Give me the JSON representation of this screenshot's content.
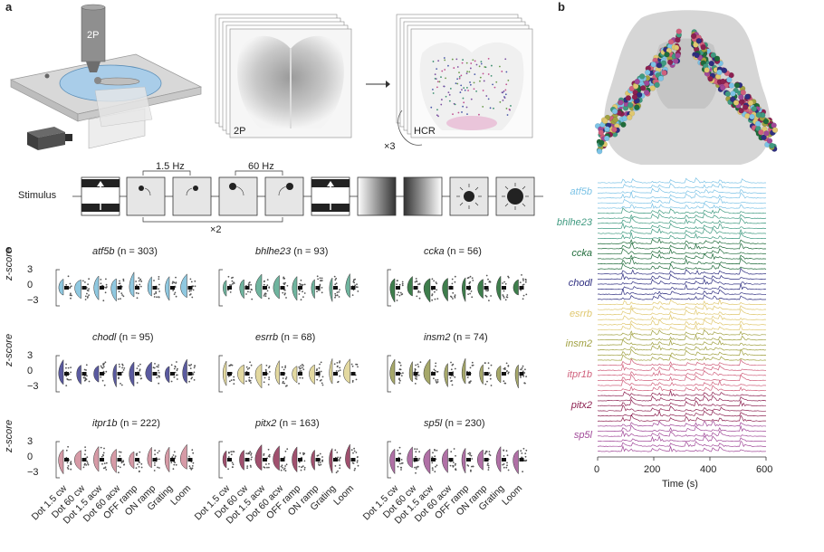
{
  "panels": {
    "a": "a",
    "b": "b",
    "c": "c"
  },
  "panel_a": {
    "microscope_label": "2P",
    "stack1_label": "2P",
    "stack2_label": "HCR",
    "repeat_label": "×3",
    "stimulus_label": "Stimulus",
    "freq1": "1.5 Hz",
    "freq2": "60 Hz",
    "repeat_stim": "×2"
  },
  "panel_c": {
    "ylabel": "z-score",
    "yticks": [
      "3",
      "0",
      "−3"
    ],
    "categories": [
      "Dot 1.5 cw",
      "Dot 60 cw",
      "Dot 1.5 acw",
      "Dot 60 acw",
      "OFF ramp",
      "ON ramp",
      "Grating",
      "Loom"
    ],
    "genes": [
      {
        "name": "atf5b",
        "n": "(n = 303)",
        "color": "#8fc8e0"
      },
      {
        "name": "bhlhe23",
        "n": "(n = 93)",
        "color": "#6fb49e"
      },
      {
        "name": "ccka",
        "n": "(n = 56)",
        "color": "#3e7e4c"
      },
      {
        "name": "chodl",
        "n": "(n = 95)",
        "color": "#5a5aa0"
      },
      {
        "name": "esrrb",
        "n": "(n = 68)",
        "color": "#e3d9a0"
      },
      {
        "name": "insm2",
        "n": "(n = 74)",
        "color": "#a6a86a"
      },
      {
        "name": "itpr1b",
        "n": "(n = 222)",
        "color": "#d69aa6"
      },
      {
        "name": "pitx2",
        "n": "(n = 163)",
        "color": "#a0506e"
      },
      {
        "name": "sp5l",
        "n": "(n = 230)",
        "color": "#b070a6"
      }
    ]
  },
  "panel_b": {
    "trace_labels": [
      {
        "name": "atf5b",
        "color": "#7cc3e6"
      },
      {
        "name": "bhlhe23",
        "color": "#3f9a80"
      },
      {
        "name": "ccka",
        "color": "#1f6b3a"
      },
      {
        "name": "chodl",
        "color": "#2e2e80"
      },
      {
        "name": "esrrb",
        "color": "#e0c870"
      },
      {
        "name": "insm2",
        "color": "#a0a040"
      },
      {
        "name": "itpr1b",
        "color": "#d0607c"
      },
      {
        "name": "pitx2",
        "color": "#8c2050"
      },
      {
        "name": "sp5l",
        "color": "#a04898"
      }
    ],
    "xticks": [
      "0",
      "200",
      "400",
      "600"
    ],
    "xlabel": "Time (s)"
  },
  "chart_data": {
    "type": "line",
    "title": "",
    "xlabel": "Time (s)",
    "ylabel": "",
    "xlim": [
      0,
      600
    ],
    "series": [
      "atf5b",
      "bhlhe23",
      "ccka",
      "chodl",
      "esrrb",
      "insm2",
      "itpr1b",
      "pitx2",
      "sp5l"
    ]
  }
}
